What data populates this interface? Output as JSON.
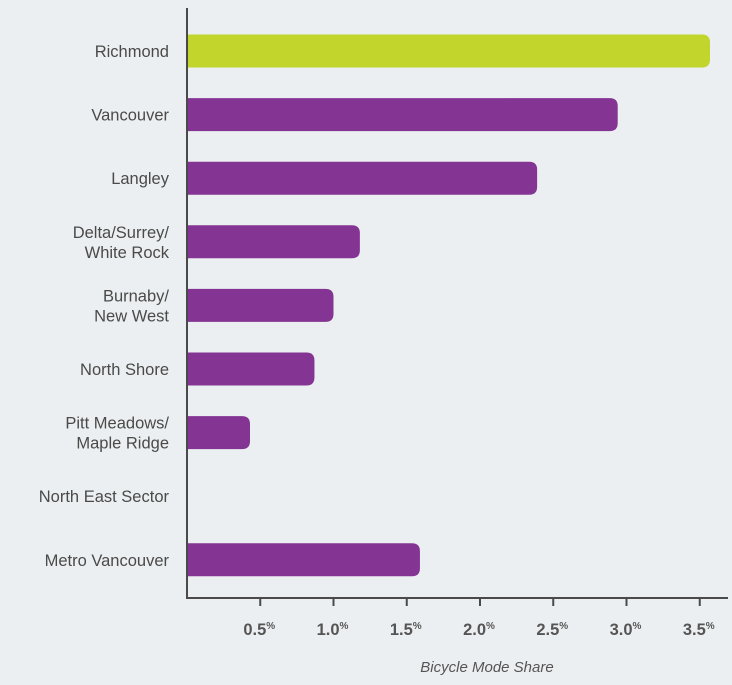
{
  "chart_data": {
    "type": "bar",
    "orientation": "horizontal",
    "title": "",
    "xlabel": "Bicycle Mode Share",
    "ylabel": "",
    "xlim": [
      0,
      3.65
    ],
    "categories": [
      [
        "Richmond"
      ],
      [
        "Vancouver"
      ],
      [
        "Langley"
      ],
      [
        "Delta/Surrey/",
        "White Rock"
      ],
      [
        "Burnaby/",
        "New West"
      ],
      [
        "North Shore"
      ],
      [
        "Pitt Meadows/",
        "Maple Ridge"
      ],
      [
        "North East Sector"
      ],
      [
        "Metro Vancouver"
      ]
    ],
    "values": [
      3.57,
      2.94,
      2.39,
      1.18,
      1.0,
      0.87,
      0.43,
      0.0,
      1.59
    ],
    "bar_colors": [
      "#c2d52d",
      "#843493",
      "#843493",
      "#843493",
      "#843493",
      "#843493",
      "#843493",
      "#843493",
      "#843493"
    ],
    "xticks": [
      {
        "value": 0.5,
        "label": "0.5",
        "suffix": "%"
      },
      {
        "value": 1.0,
        "label": "1.0",
        "suffix": "%"
      },
      {
        "value": 1.5,
        "label": "1.5",
        "suffix": "%"
      },
      {
        "value": 2.0,
        "label": "2.0",
        "suffix": "%"
      },
      {
        "value": 2.5,
        "label": "2.5",
        "suffix": "%"
      },
      {
        "value": 3.0,
        "label": "3.0",
        "suffix": "%"
      },
      {
        "value": 3.5,
        "label": "3.5",
        "suffix": "%"
      }
    ],
    "grid": false,
    "legend": "none"
  },
  "colors": {
    "background": "#eceff1",
    "axis": "#4a4a4a",
    "highlight": "#c2d52d",
    "primary": "#843493"
  }
}
